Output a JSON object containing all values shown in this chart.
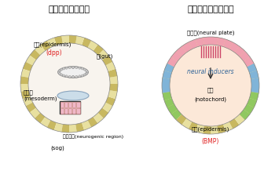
{
  "title_left": "ショウジョウバエ",
  "title_right": "アフリカツメガエル",
  "left_labels": {
    "epidermis": "表皮(epidermis)",
    "dpp": "(dpp)",
    "gut": "腸(gut)",
    "mesoderm": "中胚葉\n(mesoderm)",
    "neurogenic": "神経領域(neurogenic region)",
    "sog": "(sog)"
  },
  "right_labels": {
    "neural_plate": "神経板(neural plate)",
    "neural_inducers": "neural inducers",
    "notochord_jp": "脊索",
    "notochord": "(notochord)",
    "epidermis": "表皮(epidermis)",
    "bmp": "(BMP)"
  },
  "colors": {
    "outer_ring_yellow": "#e8e0a0",
    "outer_ring_dark": "#c8b860",
    "background": "#ffffff",
    "interior_bg": "#f8f4ee",
    "gut_fill": "#e8e8e8",
    "gut_outline": "#888888",
    "mesoderm_fill": "#b8d4e8",
    "neurogenic_fill": "#f0b8c8",
    "neural_plate_pink": "#f0a0b0",
    "neural_plate_stripe": "#e06878",
    "side_blue": "#80b4d8",
    "side_green": "#90c860",
    "side_green2": "#a0d070",
    "notochord_bg": "#fce8d8",
    "title_color": "#000000",
    "dpp_color": "#e02020",
    "bmp_color": "#e02020",
    "text_color": "#000000"
  }
}
